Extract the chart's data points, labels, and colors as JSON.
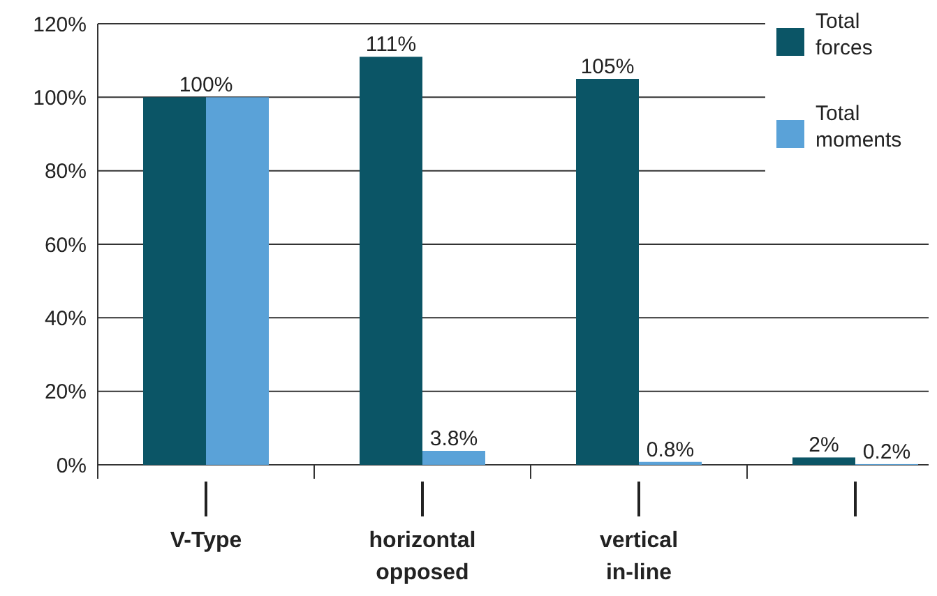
{
  "chart_data": {
    "type": "bar",
    "categories": [
      "V-Type",
      "horizontal\nopposed",
      "vertical\nin-line",
      null
    ],
    "series": [
      {
        "name": "Total\nforces",
        "color": "#0b5566",
        "values": [
          100,
          111,
          105,
          2
        ],
        "value_labels": [
          "100%",
          "111%",
          "105%",
          "2%"
        ]
      },
      {
        "name": "Total\nmoments",
        "color": "#5aa2d8",
        "values": [
          100,
          3.8,
          0.8,
          0.2
        ],
        "value_labels": [
          null,
          "3.8%",
          "0.8%",
          "0.2%"
        ]
      }
    ],
    "ylim": [
      0,
      120
    ],
    "yticks": [
      {
        "value": 0,
        "label": "0%"
      },
      {
        "value": 20,
        "label": "20%"
      },
      {
        "value": 40,
        "label": "40%"
      },
      {
        "value": 60,
        "label": "60%"
      },
      {
        "value": 80,
        "label": "80%"
      },
      {
        "value": 100,
        "label": "100%"
      },
      {
        "value": 120,
        "label": "120%"
      }
    ],
    "grid": "y",
    "legend": "top right"
  }
}
